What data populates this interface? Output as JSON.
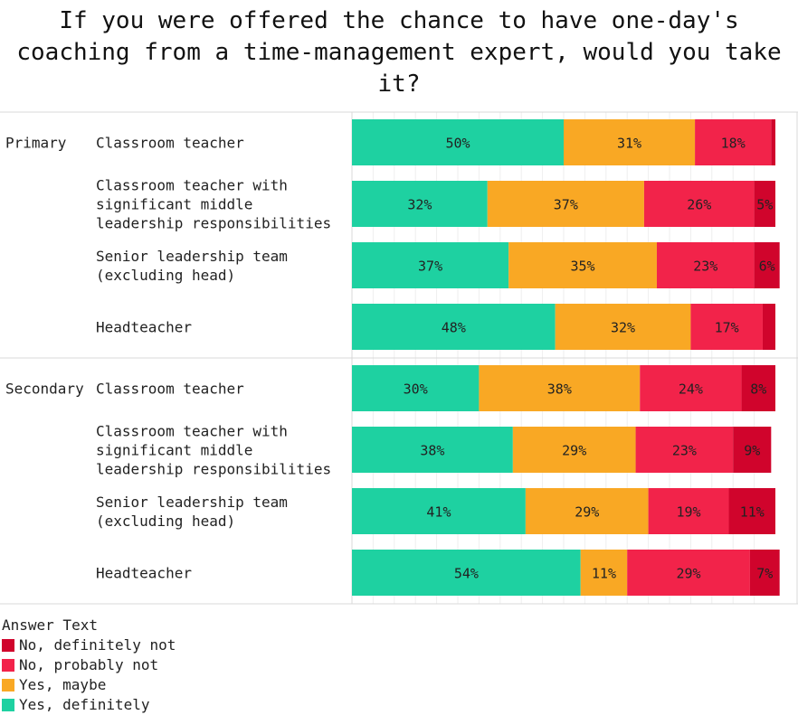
{
  "chart_data": {
    "type": "bar",
    "orientation": "horizontal",
    "stacked": true,
    "title": "If you were offered the chance to have one-day's coaching from a time-management expert, would you take it?",
    "xlim": [
      0,
      100
    ],
    "grid": true,
    "legend_placement": "bottom-left",
    "legend_title": "Answer Text",
    "groups": [
      {
        "name": "Primary",
        "categories": [
          "Classroom teacher",
          "Classroom teacher with significant middle leadership responsibilities",
          "Senior leadership team (excluding head)",
          "Headteacher"
        ],
        "category_lines": [
          [
            "Classroom teacher"
          ],
          [
            "Classroom teacher with",
            "significant middle",
            "leadership responsibilities"
          ],
          [
            "Senior leadership team",
            "(excluding head)"
          ],
          [
            "Headteacher"
          ]
        ]
      },
      {
        "name": "Secondary",
        "categories": [
          "Classroom teacher",
          "Classroom teacher with significant middle leadership responsibilities",
          "Senior leadership team (excluding head)",
          "Headteacher"
        ],
        "category_lines": [
          [
            "Classroom teacher"
          ],
          [
            "Classroom teacher with",
            "significant middle",
            "leadership responsibilities"
          ],
          [
            "Senior leadership team",
            "(excluding head)"
          ],
          [
            "Headteacher"
          ]
        ]
      }
    ],
    "series": [
      {
        "name": "Yes, definitely",
        "color": "#1ed1a1",
        "values": [
          50,
          32,
          37,
          48,
          30,
          38,
          41,
          54
        ]
      },
      {
        "name": "Yes, maybe",
        "color": "#f9a824",
        "values": [
          31,
          37,
          35,
          32,
          38,
          29,
          29,
          11
        ]
      },
      {
        "name": "No, probably not",
        "color": "#f2234a",
        "values": [
          18,
          26,
          23,
          17,
          24,
          23,
          19,
          29
        ]
      },
      {
        "name": "No, definitely not",
        "color": "#d0042c",
        "values": [
          1,
          5,
          6,
          3,
          8,
          9,
          11,
          7
        ]
      }
    ],
    "value_labels": [
      [
        "50%",
        "31%",
        "18%",
        ""
      ],
      [
        "32%",
        "37%",
        "26%",
        "5%"
      ],
      [
        "37%",
        "35%",
        "23%",
        "6%"
      ],
      [
        "48%",
        "32%",
        "17%",
        ""
      ],
      [
        "30%",
        "38%",
        "24%",
        "8%"
      ],
      [
        "38%",
        "29%",
        "23%",
        "9%"
      ],
      [
        "41%",
        "29%",
        "19%",
        "11%"
      ],
      [
        "54%",
        "11%",
        "29%",
        "7%"
      ]
    ],
    "legend_order": [
      "No, definitely not",
      "No, probably not",
      "Yes, maybe",
      "Yes, definitely"
    ]
  }
}
